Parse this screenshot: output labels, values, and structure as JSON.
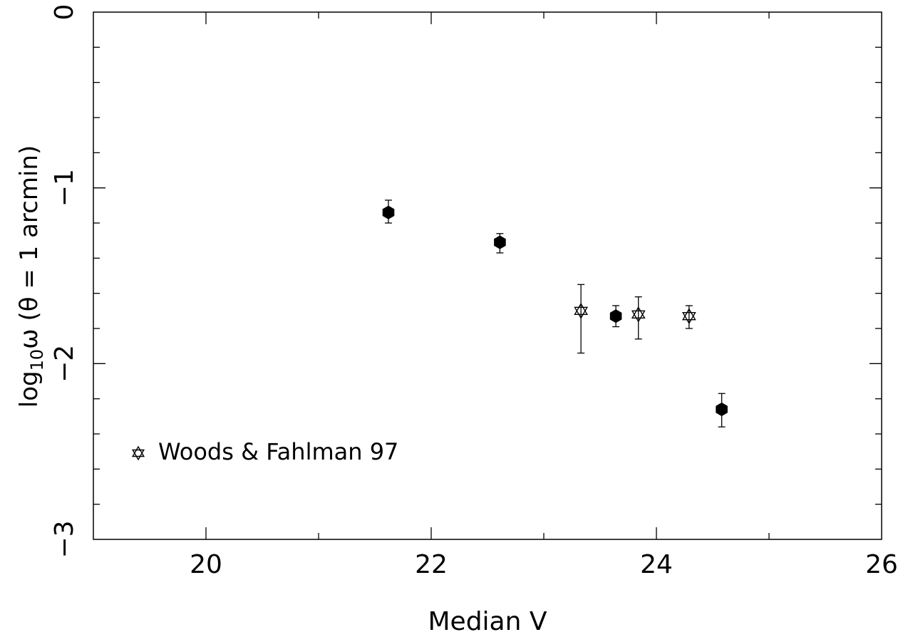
{
  "chart_data": {
    "type": "scatter",
    "xlabel": "Median V",
    "ylabel": "log",
    "ylabel_sub": "10",
    "ylabel_omega": "ω",
    "ylabel_rest": " (θ = 1 arcmin)",
    "xlim": [
      19,
      26
    ],
    "ylim": [
      -3,
      0
    ],
    "x_ticks": [
      20,
      22,
      24,
      26
    ],
    "x_tick_labels": [
      "20",
      "22",
      "24",
      "26"
    ],
    "y_ticks": [
      0,
      -1,
      -2,
      -3
    ],
    "y_tick_labels": [
      "0",
      "−1",
      "−2",
      "−3"
    ],
    "x_minor_step": 1,
    "y_minor_step": 0.2,
    "series": [
      {
        "marker": "filled-hexagon",
        "points": [
          {
            "x": 21.62,
            "y": -1.14,
            "yerr_low": 0.06,
            "yerr_high": 0.07
          },
          {
            "x": 22.61,
            "y": -1.31,
            "yerr_low": 0.06,
            "yerr_high": 0.05
          },
          {
            "x": 23.64,
            "y": -1.73,
            "yerr_low": 0.06,
            "yerr_high": 0.06
          },
          {
            "x": 24.58,
            "y": -2.26,
            "yerr_low": 0.1,
            "yerr_high": 0.09
          }
        ]
      },
      {
        "name": "Woods & Fahlman 97",
        "marker": "open-star",
        "points": [
          {
            "x": 23.33,
            "y": -1.7,
            "yerr_low": 0.24,
            "yerr_high": 0.15
          },
          {
            "x": 23.84,
            "y": -1.72,
            "yerr_low": 0.14,
            "yerr_high": 0.1
          },
          {
            "x": 24.29,
            "y": -1.73,
            "yerr_low": 0.07,
            "yerr_high": 0.06
          }
        ]
      }
    ],
    "legend": {
      "position": "bottom-left",
      "entries": [
        {
          "marker": "open-star",
          "label": "Woods & Fahlman 97"
        }
      ]
    }
  }
}
